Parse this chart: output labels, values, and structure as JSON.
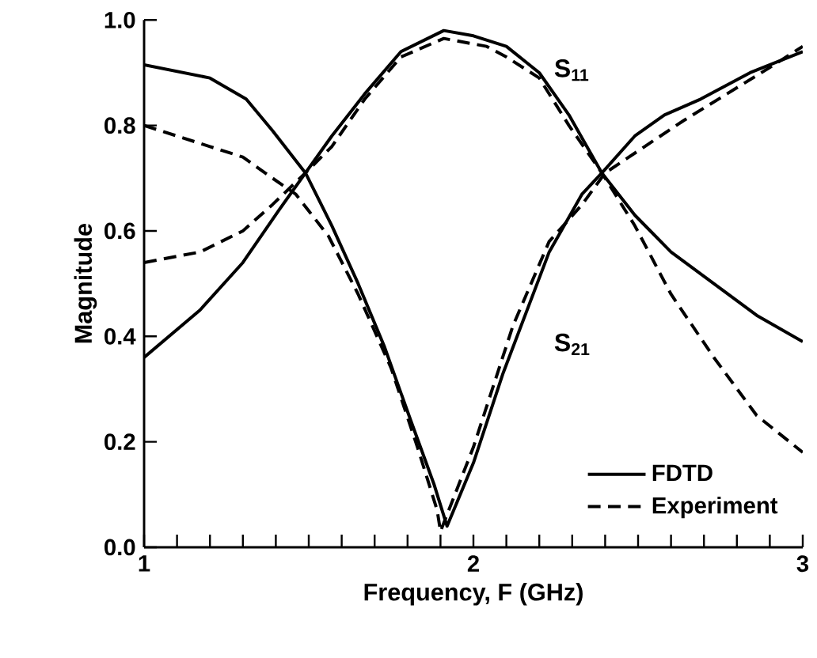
{
  "chart_data": {
    "type": "line",
    "xlabel": "Frequency, F (GHz)",
    "ylabel": "Magnitude",
    "xlim": [
      1,
      3
    ],
    "ylim": [
      0,
      1
    ],
    "xticks": [
      1,
      {
        "value": 1.1,
        "label": null
      },
      {
        "value": 1.2,
        "label": null
      },
      {
        "value": 1.3,
        "label": null
      },
      {
        "value": 1.4,
        "label": null
      },
      {
        "value": 1.5,
        "label": null
      },
      {
        "value": 1.6,
        "label": null
      },
      {
        "value": 1.7,
        "label": null
      },
      {
        "value": 1.8,
        "label": null
      },
      {
        "value": 1.9,
        "label": null
      },
      2,
      {
        "value": 2.1,
        "label": null
      },
      {
        "value": 2.2,
        "label": null
      },
      {
        "value": 2.3,
        "label": null
      },
      {
        "value": 2.4,
        "label": null
      },
      {
        "value": 2.5,
        "label": null
      },
      {
        "value": 2.6,
        "label": null
      },
      {
        "value": 2.7,
        "label": null
      },
      {
        "value": 2.8,
        "label": null
      },
      {
        "value": 2.9,
        "label": null
      },
      3
    ],
    "yticks": [
      {
        "value": 0,
        "label": "0.0"
      },
      0.2,
      0.4,
      0.6,
      0.8,
      {
        "value": 1,
        "label": "1.0"
      }
    ],
    "grid": false,
    "legend": "bottom right",
    "marker": "none",
    "annotations": [
      "S$_{11}$",
      "S$_{21}$"
    ],
    "series": [
      {
        "name": "FDTD",
        "color": "#000000",
        "line_style": "solid",
        "x": [
          1.0,
          1.2,
          1.31,
          1.39,
          1.49,
          1.57,
          1.65,
          1.73,
          1.81,
          1.88,
          1.92,
          2.0,
          2.09,
          2.23,
          2.33,
          2.39,
          2.49,
          2.58,
          2.69,
          2.84,
          3.0
        ],
        "values": [
          0.915,
          0.89,
          0.85,
          0.79,
          0.71,
          0.61,
          0.5,
          0.38,
          0.24,
          0.12,
          0.04,
          0.16,
          0.33,
          0.56,
          0.67,
          0.71,
          0.78,
          0.82,
          0.85,
          0.9,
          0.94
        ]
      },
      {
        "color": "#000000",
        "line_style": "solid",
        "x": [
          1.0,
          1.17,
          1.3,
          1.41,
          1.49,
          1.57,
          1.67,
          1.78,
          1.91,
          2.0,
          2.1,
          2.2,
          2.29,
          2.39,
          2.49,
          2.6,
          2.73,
          2.86,
          3.0
        ],
        "values": [
          0.36,
          0.45,
          0.54,
          0.64,
          0.71,
          0.78,
          0.86,
          0.94,
          0.98,
          0.97,
          0.95,
          0.9,
          0.82,
          0.71,
          0.63,
          0.56,
          0.5,
          0.44,
          0.39
        ]
      },
      {
        "name": "Experiment",
        "color": "#000000",
        "line_style": "dashed",
        "x": [
          1.0,
          1.2,
          1.3,
          1.39,
          1.46,
          1.56,
          1.65,
          1.75,
          1.83,
          1.89,
          1.9,
          2.0,
          2.12,
          2.23,
          2.33,
          2.4,
          2.52,
          2.64,
          2.77,
          2.9,
          3.0
        ],
        "values": [
          0.8,
          0.76,
          0.74,
          0.7,
          0.67,
          0.59,
          0.48,
          0.34,
          0.19,
          0.07,
          0.03,
          0.19,
          0.42,
          0.58,
          0.65,
          0.71,
          0.76,
          0.81,
          0.86,
          0.91,
          0.95
        ]
      },
      {
        "color": "#000000",
        "line_style": "dashed",
        "x": [
          1.0,
          1.17,
          1.3,
          1.39,
          1.49,
          1.57,
          1.67,
          1.78,
          1.91,
          2.04,
          2.1,
          2.2,
          2.29,
          2.39,
          2.49,
          2.6,
          2.73,
          2.86,
          3.0
        ],
        "values": [
          0.54,
          0.56,
          0.6,
          0.65,
          0.71,
          0.76,
          0.85,
          0.93,
          0.965,
          0.95,
          0.93,
          0.89,
          0.8,
          0.71,
          0.61,
          0.48,
          0.36,
          0.25,
          0.18
        ]
      }
    ]
  }
}
